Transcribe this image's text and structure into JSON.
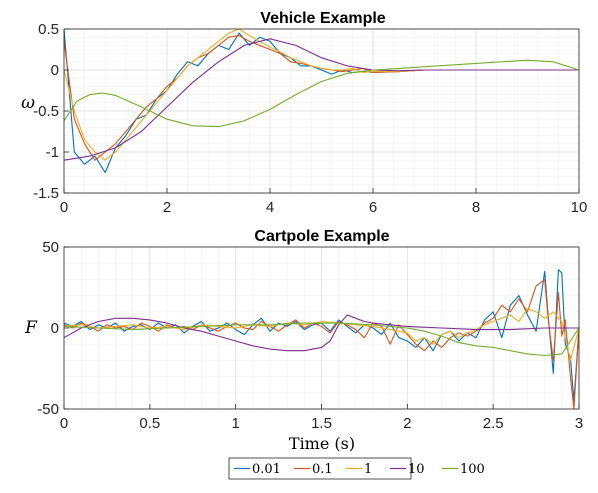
{
  "chart_data": [
    {
      "type": "line",
      "title": "Vehicle Example",
      "xlabel": "",
      "ylabel": "ω",
      "xlim": [
        0,
        10
      ],
      "ylim": [
        -1.5,
        0.5
      ],
      "xticks": [
        0,
        2,
        4,
        6,
        8,
        10
      ],
      "xtick_labels": [
        "0",
        "2",
        "4",
        "6",
        "8",
        "10"
      ],
      "yticks": [
        -1.5,
        -1,
        -0.5,
        0,
        0.5
      ],
      "ytick_labels": [
        "-1.5",
        "-1",
        "-0.5",
        "0",
        "0.5"
      ],
      "grid": true,
      "series": [
        {
          "name": "0.01",
          "color": "#0072BD",
          "x": [
            0,
            0.2,
            0.4,
            0.6,
            0.8,
            1.0,
            1.2,
            1.4,
            1.6,
            1.8,
            2.0,
            2.2,
            2.4,
            2.6,
            2.8,
            3.0,
            3.2,
            3.4,
            3.6,
            3.8,
            4.0,
            4.2,
            4.4,
            4.6,
            4.8,
            5.0,
            5.2,
            5.4,
            5.6,
            5.8,
            6.0,
            6.5,
            7.0,
            8.0,
            9.0,
            10.0
          ],
          "y": [
            0.5,
            -1.0,
            -1.15,
            -1.05,
            -1.25,
            -0.95,
            -0.8,
            -0.6,
            -0.55,
            -0.35,
            -0.25,
            -0.05,
            0.1,
            0.05,
            0.2,
            0.3,
            0.25,
            0.45,
            0.3,
            0.4,
            0.35,
            0.2,
            0.15,
            0.05,
            0.05,
            0.0,
            -0.05,
            0.0,
            -0.03,
            -0.02,
            -0.03,
            -0.02,
            0.0,
            0.0,
            0.0,
            0.0
          ]
        },
        {
          "name": "0.1",
          "color": "#D95319",
          "x": [
            0,
            0.2,
            0.4,
            0.6,
            0.8,
            1.0,
            1.2,
            1.4,
            1.6,
            1.8,
            2.0,
            2.2,
            2.4,
            2.6,
            2.8,
            3.0,
            3.2,
            3.4,
            3.6,
            3.8,
            4.0,
            4.2,
            4.4,
            4.6,
            4.8,
            5.0,
            5.2,
            5.4,
            5.6,
            5.8,
            6.0,
            6.5,
            7.0,
            8.0,
            9.0,
            10.0
          ],
          "y": [
            0.35,
            -0.6,
            -0.9,
            -1.1,
            -1.0,
            -0.9,
            -0.75,
            -0.6,
            -0.45,
            -0.35,
            -0.2,
            -0.1,
            0.05,
            0.15,
            0.2,
            0.3,
            0.4,
            0.42,
            0.35,
            0.3,
            0.25,
            0.2,
            0.1,
            0.08,
            0.05,
            0.02,
            0.0,
            -0.02,
            0.0,
            0.02,
            -0.03,
            -0.02,
            0.0,
            0.0,
            0.0,
            0.0
          ]
        },
        {
          "name": "1",
          "color": "#EDB120",
          "x": [
            0,
            0.2,
            0.4,
            0.6,
            0.8,
            1.0,
            1.2,
            1.4,
            1.6,
            1.8,
            2.0,
            2.2,
            2.4,
            2.6,
            2.8,
            3.0,
            3.2,
            3.4,
            3.6,
            3.8,
            4.0,
            4.2,
            4.4,
            4.6,
            4.8,
            5.0,
            5.2,
            5.4,
            5.6,
            5.8,
            6.0,
            6.5,
            7.0,
            8.0,
            9.0,
            10.0
          ],
          "y": [
            0.0,
            -0.5,
            -0.85,
            -1.0,
            -1.1,
            -1.0,
            -0.85,
            -0.7,
            -0.55,
            -0.4,
            -0.25,
            -0.1,
            0.05,
            0.15,
            0.25,
            0.35,
            0.45,
            0.5,
            0.42,
            0.35,
            0.28,
            0.22,
            0.15,
            0.1,
            0.05,
            0.02,
            0.0,
            0.0,
            0.02,
            -0.03,
            -0.02,
            -0.02,
            0.0,
            0.0,
            0.0,
            0.0
          ]
        },
        {
          "name": "10",
          "color": "#7E2F8E",
          "x": [
            0,
            0.5,
            1.0,
            1.5,
            2.0,
            2.5,
            3.0,
            3.5,
            4.0,
            4.5,
            5.0,
            5.5,
            6.0,
            6.5,
            7.0,
            8.0,
            9.0,
            10.0
          ],
          "y": [
            -1.1,
            -1.05,
            -0.95,
            -0.75,
            -0.45,
            -0.15,
            0.1,
            0.3,
            0.38,
            0.3,
            0.15,
            0.05,
            0.0,
            -0.01,
            0.0,
            0.0,
            0.0,
            0.0
          ]
        },
        {
          "name": "100",
          "color": "#77AC30",
          "x": [
            0,
            0.25,
            0.5,
            0.75,
            1.0,
            1.5,
            2.0,
            2.5,
            3.0,
            3.5,
            4.0,
            4.5,
            5.0,
            5.5,
            6.0,
            6.5,
            7.0,
            7.5,
            8.0,
            8.5,
            9.0,
            9.5,
            10.0
          ],
          "y": [
            -0.62,
            -0.38,
            -0.3,
            -0.28,
            -0.31,
            -0.45,
            -0.6,
            -0.68,
            -0.69,
            -0.62,
            -0.48,
            -0.3,
            -0.14,
            -0.04,
            0.0,
            0.02,
            0.04,
            0.06,
            0.08,
            0.1,
            0.12,
            0.1,
            0.0
          ]
        }
      ]
    },
    {
      "type": "line",
      "title": "Cartpole Example",
      "xlabel": "Time (s)",
      "ylabel": "F",
      "xlim": [
        0,
        3
      ],
      "ylim": [
        -50,
        50
      ],
      "xticks": [
        0,
        0.5,
        1,
        1.5,
        2,
        2.5,
        3
      ],
      "xtick_labels": [
        "0",
        "0.5",
        "1",
        "1.5",
        "2",
        "2.5",
        "3"
      ],
      "yticks": [
        -50,
        0,
        50
      ],
      "ytick_labels": [
        "-50",
        "0",
        "50"
      ],
      "grid": true,
      "series": [
        {
          "name": "0.01",
          "color": "#0072BD",
          "x": [
            0,
            0.05,
            0.1,
            0.15,
            0.2,
            0.25,
            0.3,
            0.35,
            0.4,
            0.45,
            0.5,
            0.55,
            0.6,
            0.65,
            0.7,
            0.75,
            0.8,
            0.85,
            0.9,
            0.95,
            1.0,
            1.05,
            1.1,
            1.15,
            1.2,
            1.25,
            1.3,
            1.35,
            1.4,
            1.45,
            1.5,
            1.55,
            1.6,
            1.65,
            1.7,
            1.75,
            1.8,
            1.85,
            1.9,
            1.95,
            2.0,
            2.05,
            2.1,
            2.15,
            2.2,
            2.25,
            2.3,
            2.35,
            2.4,
            2.45,
            2.5,
            2.55,
            2.6,
            2.65,
            2.7,
            2.75,
            2.8,
            2.82,
            2.85,
            2.88,
            2.9,
            2.92,
            2.95,
            2.97,
            3.0
          ],
          "y": [
            3,
            1,
            4,
            -1,
            2,
            0,
            3,
            -2,
            1,
            2,
            -1,
            3,
            0,
            2,
            -3,
            1,
            4,
            -2,
            0,
            3,
            -1,
            -4,
            2,
            6,
            -2,
            3,
            1,
            4,
            -1,
            2,
            3,
            -2,
            5,
            1,
            -3,
            2,
            0,
            -4,
            3,
            -6,
            -8,
            -12,
            -6,
            -14,
            -4,
            -2,
            -8,
            -3,
            -6,
            5,
            10,
            -6,
            14,
            20,
            8,
            -2,
            35,
            8,
            -28,
            36,
            34,
            -10,
            -18,
            -45,
            0
          ]
        },
        {
          "name": "0.1",
          "color": "#D95319",
          "x": [
            0,
            0.05,
            0.1,
            0.15,
            0.2,
            0.25,
            0.3,
            0.35,
            0.4,
            0.45,
            0.5,
            0.55,
            0.6,
            0.65,
            0.7,
            0.75,
            0.8,
            0.85,
            0.9,
            0.95,
            1.0,
            1.05,
            1.1,
            1.15,
            1.2,
            1.25,
            1.3,
            1.35,
            1.4,
            1.45,
            1.5,
            1.55,
            1.6,
            1.65,
            1.7,
            1.75,
            1.8,
            1.85,
            1.9,
            1.95,
            2.0,
            2.05,
            2.1,
            2.15,
            2.2,
            2.25,
            2.3,
            2.35,
            2.4,
            2.45,
            2.5,
            2.55,
            2.6,
            2.65,
            2.7,
            2.75,
            2.8,
            2.82,
            2.85,
            2.88,
            2.9,
            2.92,
            2.95,
            2.97,
            3.0
          ],
          "y": [
            2,
            0,
            3,
            1,
            -2,
            2,
            0,
            1,
            -1,
            3,
            1,
            -2,
            2,
            0,
            1,
            -1,
            2,
            0,
            -2,
            1,
            3,
            0,
            -1,
            4,
            1,
            -2,
            2,
            5,
            0,
            3,
            1,
            -3,
            4,
            2,
            -1,
            -6,
            3,
            1,
            -10,
            2,
            -4,
            -10,
            -14,
            -8,
            -12,
            -6,
            -3,
            -5,
            -2,
            3,
            6,
            14,
            10,
            18,
            10,
            26,
            30,
            6,
            -20,
            22,
            -5,
            5,
            -30,
            -50,
            0
          ]
        },
        {
          "name": "1",
          "color": "#EDB120",
          "x": [
            0,
            0.1,
            0.2,
            0.3,
            0.4,
            0.5,
            0.6,
            0.7,
            0.8,
            0.9,
            1.0,
            1.1,
            1.2,
            1.3,
            1.4,
            1.5,
            1.6,
            1.7,
            1.8,
            1.9,
            2.0,
            2.05,
            2.1,
            2.15,
            2.2,
            2.25,
            2.3,
            2.35,
            2.4,
            2.45,
            2.5,
            2.55,
            2.6,
            2.65,
            2.7,
            2.75,
            2.8,
            2.85,
            2.9,
            2.95,
            3.0
          ],
          "y": [
            1,
            2,
            0,
            1,
            2,
            0,
            1,
            -1,
            2,
            1,
            0,
            2,
            1,
            3,
            2,
            4,
            3,
            2,
            1,
            -1,
            -3,
            -8,
            -6,
            -10,
            -4,
            -2,
            -6,
            -3,
            -1,
            2,
            4,
            6,
            8,
            4,
            12,
            10,
            6,
            10,
            4,
            -20,
            0
          ]
        },
        {
          "name": "10",
          "color": "#7E2F8E",
          "x": [
            0,
            0.1,
            0.2,
            0.3,
            0.4,
            0.5,
            0.6,
            0.7,
            0.8,
            0.9,
            1.0,
            1.1,
            1.2,
            1.3,
            1.4,
            1.5,
            1.55,
            1.6,
            1.65,
            1.7,
            1.75,
            1.8,
            1.9,
            2.0,
            2.2,
            2.4,
            2.6,
            2.8,
            3.0
          ],
          "y": [
            -6,
            0,
            4,
            6,
            6,
            5,
            3,
            0,
            -2,
            -5,
            -8,
            -11,
            -13,
            -14,
            -14,
            -12,
            -8,
            2,
            8,
            6,
            4,
            3,
            2,
            1,
            0,
            -1,
            -1,
            0,
            0
          ]
        },
        {
          "name": "100",
          "color": "#77AC30",
          "x": [
            0,
            0.2,
            0.4,
            0.6,
            0.8,
            1.0,
            1.2,
            1.4,
            1.6,
            1.8,
            2.0,
            2.1,
            2.2,
            2.3,
            2.4,
            2.5,
            2.6,
            2.7,
            2.8,
            2.9,
            2.95,
            3.0
          ],
          "y": [
            1,
            0,
            -1,
            0,
            1,
            2,
            2,
            3,
            3,
            2,
            0,
            -2,
            -5,
            -9,
            -11,
            -12,
            -14,
            -16,
            -17,
            -16,
            -8,
            0
          ]
        }
      ]
    }
  ],
  "legend": {
    "entries": [
      "0.01",
      "0.1",
      "1",
      "10",
      "100"
    ],
    "colors": [
      "#0072BD",
      "#D95319",
      "#EDB120",
      "#7E2F8E",
      "#77AC30"
    ],
    "placement": "bottom-center"
  }
}
